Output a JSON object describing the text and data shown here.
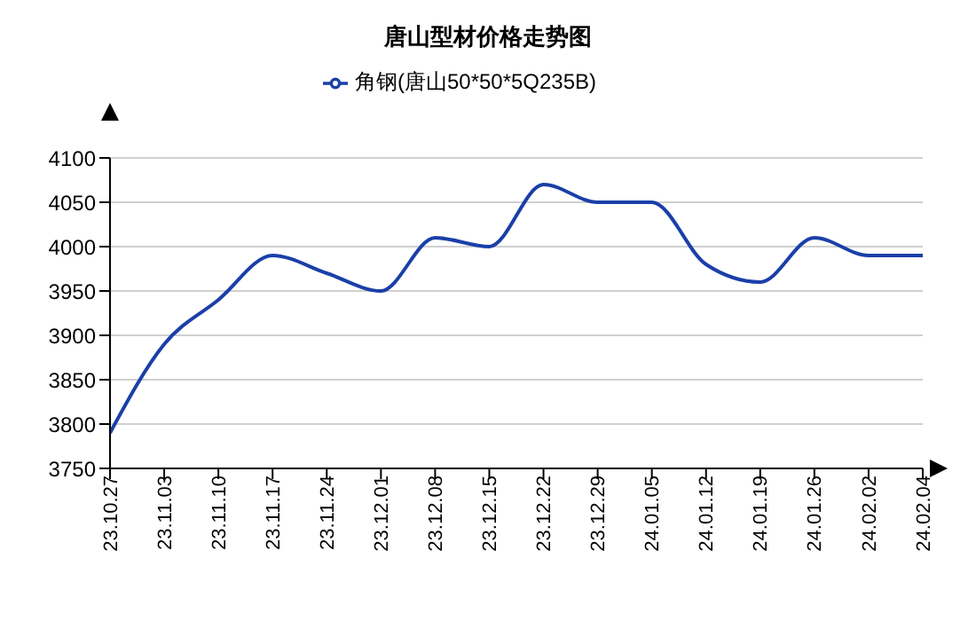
{
  "chart_data": {
    "type": "line",
    "title": "唐山型材价格走势图",
    "categories": [
      "23.10.27",
      "23.11.03",
      "23.11.10",
      "23.11.17",
      "23.11.24",
      "23.12.01",
      "23.12.08",
      "23.12.15",
      "23.12.22",
      "23.12.29",
      "24.01.05",
      "24.01.12",
      "24.01.19",
      "24.01.26",
      "24.02.02",
      "24.02.04"
    ],
    "series": [
      {
        "name": "角钢(唐山50*50*5Q235B)",
        "color": "#1a3fa8",
        "values": [
          3790,
          3890,
          3940,
          3990,
          3970,
          3950,
          4010,
          4000,
          4070,
          4050,
          4050,
          3980,
          3960,
          4010,
          3990,
          3990
        ]
      }
    ],
    "ylim": [
      3750,
      4100
    ],
    "yticks": [
      3750,
      3800,
      3850,
      3900,
      3950,
      4000,
      4050,
      4100
    ],
    "grid": "y",
    "legend": "top",
    "marker": "none",
    "line_style": "solid"
  }
}
